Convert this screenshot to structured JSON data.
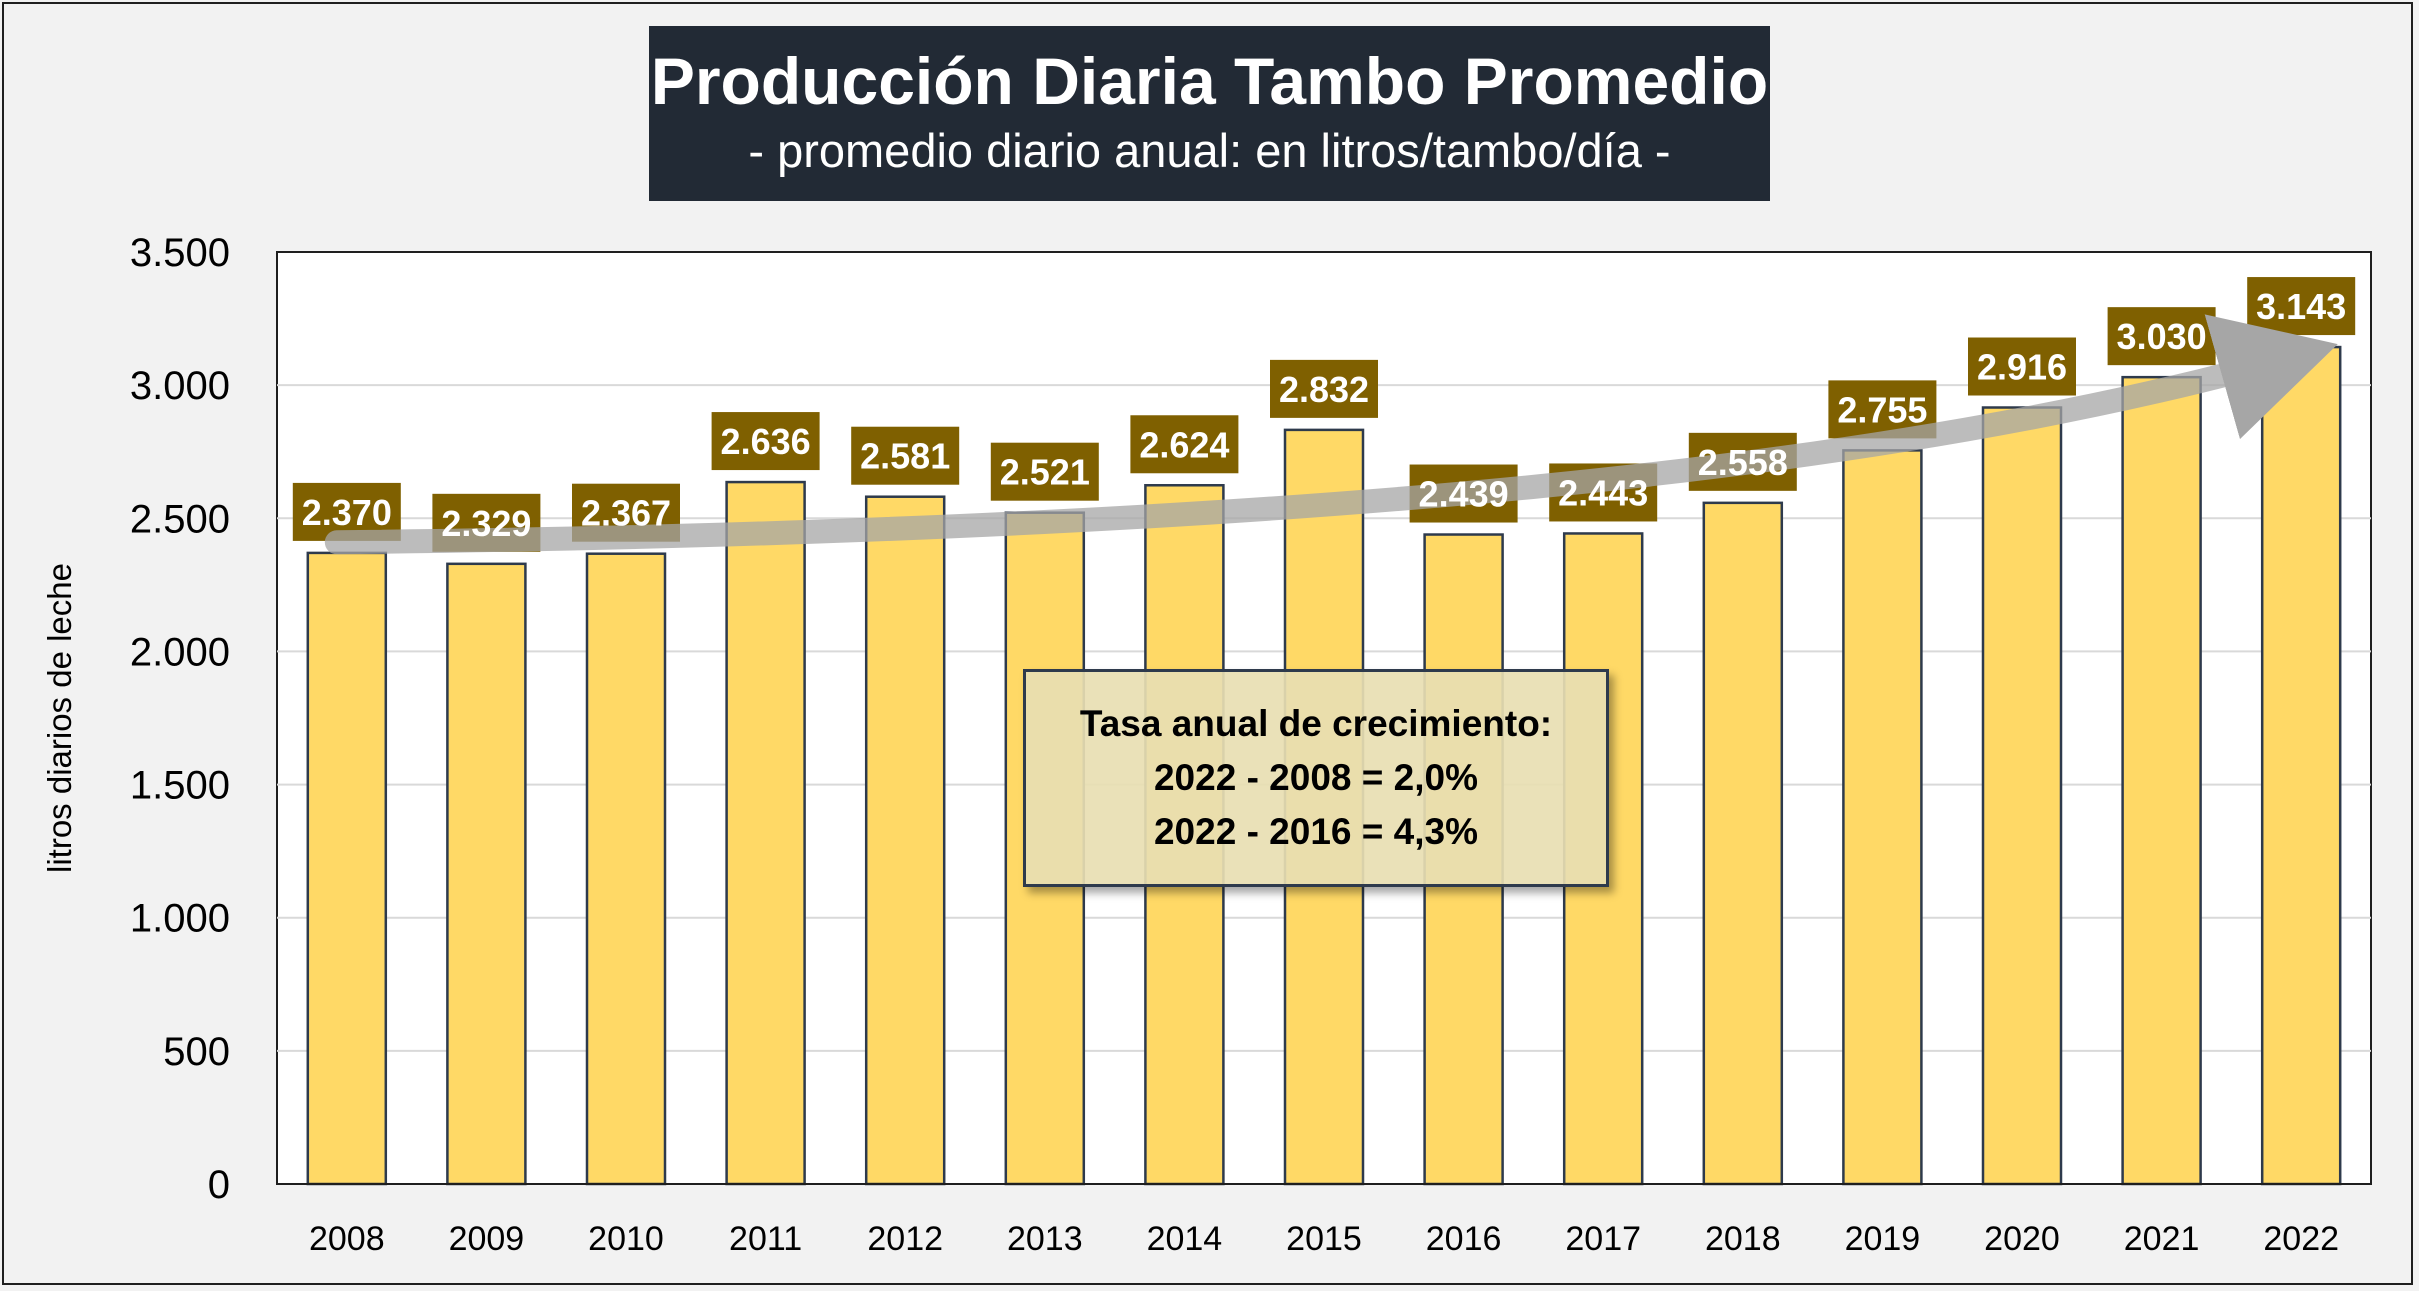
{
  "header": {
    "title": "Producción Diaria Tambo Promedio",
    "subtitle": "- promedio diario anual: en litros/tambo/día -"
  },
  "annotation": {
    "title": "Tasa anual de crecimiento:",
    "lines": [
      "2022 - 2008 = 2,0%",
      "2022 - 2016 = 4,3%"
    ]
  },
  "colors": {
    "bar_fill": "#ffd966",
    "bar_stroke": "#2e3a4c",
    "label_bg": "#7f6000",
    "title_bg": "#222a35",
    "trend_arrow": "#a6a6a6"
  },
  "chart_data": {
    "type": "bar",
    "title": "Producción Diaria Tambo Promedio",
    "subtitle": "- promedio diario anual: en litros/tambo/día -",
    "xlabel": "",
    "ylabel": "litros diarios de leche",
    "categories": [
      "2008",
      "2009",
      "2010",
      "2011",
      "2012",
      "2013",
      "2014",
      "2015",
      "2016",
      "2017",
      "2018",
      "2019",
      "2020",
      "2021",
      "2022"
    ],
    "values": [
      2370,
      2329,
      2367,
      2636,
      2581,
      2521,
      2624,
      2832,
      2439,
      2443,
      2558,
      2755,
      2916,
      3030,
      3143
    ],
    "value_labels": [
      "2.370",
      "2.329",
      "2.367",
      "2.636",
      "2.581",
      "2.521",
      "2.624",
      "2.832",
      "2.439",
      "2.443",
      "2.558",
      "2.755",
      "2.916",
      "3.030",
      "3.143"
    ],
    "ylim": [
      0,
      3500
    ],
    "yticks": [
      0,
      500,
      1000,
      1500,
      2000,
      2500,
      3000,
      3500
    ],
    "ytick_labels": [
      "0",
      "500",
      "1.000",
      "1.500",
      "2.000",
      "2.500",
      "3.000",
      "3.500"
    ],
    "grid": true,
    "legend": "none",
    "trend_arrow": true
  }
}
